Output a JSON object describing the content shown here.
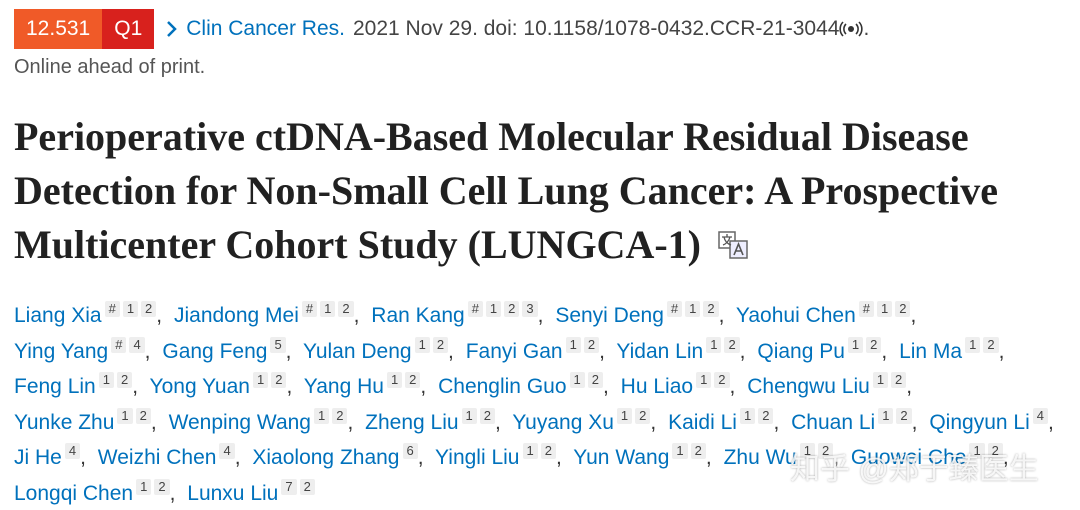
{
  "header": {
    "impact_factor": "12.531",
    "quartile": "Q1",
    "journal": "Clin Cancer Res.",
    "citation": "2021 Nov 29. doi: 10.1158/1078-0432.CCR-21-3044",
    "citation_end": ".",
    "status": "Online ahead of print."
  },
  "title": "Perioperative ctDNA-Based Molecular Residual Disease Detection for Non-Small Cell Lung Cancer: A Prospective Multicenter Cohort Study (LUNGCA-1)",
  "separator": ",",
  "authors": [
    {
      "name": "Liang Xia",
      "sup": [
        "#",
        "1",
        "2"
      ]
    },
    {
      "name": "Jiandong Mei",
      "sup": [
        "#",
        "1",
        "2"
      ]
    },
    {
      "name": "Ran Kang",
      "sup": [
        "#",
        "1",
        "2",
        "3"
      ]
    },
    {
      "name": "Senyi Deng",
      "sup": [
        "#",
        "1",
        "2"
      ]
    },
    {
      "name": "Yaohui Chen",
      "sup": [
        "#",
        "1",
        "2"
      ]
    },
    {
      "name": "Ying Yang",
      "sup": [
        "#",
        "4"
      ]
    },
    {
      "name": "Gang Feng",
      "sup": [
        "5"
      ]
    },
    {
      "name": "Yulan Deng",
      "sup": [
        "1",
        "2"
      ]
    },
    {
      "name": "Fanyi Gan",
      "sup": [
        "1",
        "2"
      ]
    },
    {
      "name": "Yidan Lin",
      "sup": [
        "1",
        "2"
      ]
    },
    {
      "name": "Qiang Pu",
      "sup": [
        "1",
        "2"
      ]
    },
    {
      "name": "Lin Ma",
      "sup": [
        "1",
        "2"
      ]
    },
    {
      "name": "Feng Lin",
      "sup": [
        "1",
        "2"
      ]
    },
    {
      "name": "Yong Yuan",
      "sup": [
        "1",
        "2"
      ]
    },
    {
      "name": "Yang Hu",
      "sup": [
        "1",
        "2"
      ]
    },
    {
      "name": "Chenglin Guo",
      "sup": [
        "1",
        "2"
      ]
    },
    {
      "name": "Hu Liao",
      "sup": [
        "1",
        "2"
      ]
    },
    {
      "name": "Chengwu Liu",
      "sup": [
        "1",
        "2"
      ]
    },
    {
      "name": "Yunke Zhu",
      "sup": [
        "1",
        "2"
      ]
    },
    {
      "name": "Wenping Wang",
      "sup": [
        "1",
        "2"
      ]
    },
    {
      "name": "Zheng Liu",
      "sup": [
        "1",
        "2"
      ]
    },
    {
      "name": "Yuyang Xu",
      "sup": [
        "1",
        "2"
      ]
    },
    {
      "name": "Kaidi Li",
      "sup": [
        "1",
        "2"
      ]
    },
    {
      "name": "Chuan Li",
      "sup": [
        "1",
        "2"
      ]
    },
    {
      "name": "Qingyun Li",
      "sup": [
        "4"
      ]
    },
    {
      "name": "Ji He",
      "sup": [
        "4"
      ]
    },
    {
      "name": "Weizhi Chen",
      "sup": [
        "4"
      ]
    },
    {
      "name": "Xiaolong Zhang",
      "sup": [
        "6"
      ]
    },
    {
      "name": "Yingli Liu",
      "sup": [
        "1",
        "2"
      ]
    },
    {
      "name": "Yun Wang",
      "sup": [
        "1",
        "2"
      ]
    },
    {
      "name": "Zhu Wu",
      "sup": [
        "1",
        "2"
      ]
    },
    {
      "name": "Guowei Che",
      "sup": [
        "1",
        "2"
      ]
    },
    {
      "name": "Longqi Chen",
      "sup": [
        "1",
        "2"
      ]
    },
    {
      "name": "Lunxu Liu",
      "sup": [
        "7",
        "2"
      ]
    }
  ],
  "watermark": "知乎 @郑于臻医生"
}
